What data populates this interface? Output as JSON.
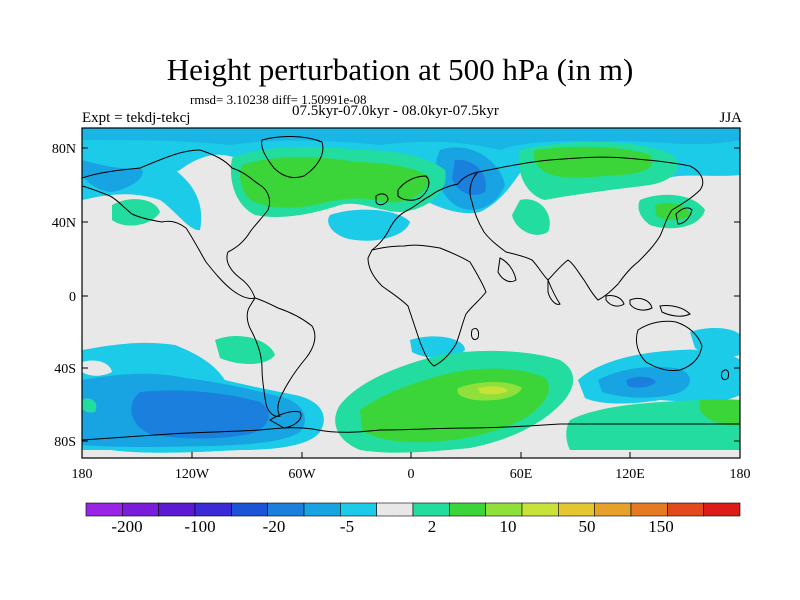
{
  "title": "Height perturbation at 500 hPa (in m)",
  "stats": "rmsd= 3.10238 diff= 1.50991e-08",
  "left_label": "Expt = tekdj-tekcj",
  "center_label": "07.5kyr-07.0kyr - 08.0kyr-07.5kyr",
  "right_label": "JJA",
  "lat_ticks": [
    "80N",
    "40N",
    "0",
    "40S",
    "80S"
  ],
  "lon_ticks": [
    "180",
    "120W",
    "60W",
    "0",
    "60E",
    "120E",
    "180"
  ],
  "colorbar": {
    "colors": [
      "#9a24e3",
      "#7a1ddb",
      "#5b1ad4",
      "#3a2bd6",
      "#1c54d8",
      "#1a7fdd",
      "#18a4e2",
      "#1ccbe8",
      "#e8e8e8",
      "#22dca0",
      "#3bd53a",
      "#8fe03a",
      "#c9e23a",
      "#e3c630",
      "#e5a12a",
      "#e57a23",
      "#e2491d",
      "#dc1c19"
    ],
    "labels": [
      "-200",
      "-100",
      "-20",
      "-5",
      "2",
      "10",
      "50",
      "150"
    ]
  }
}
